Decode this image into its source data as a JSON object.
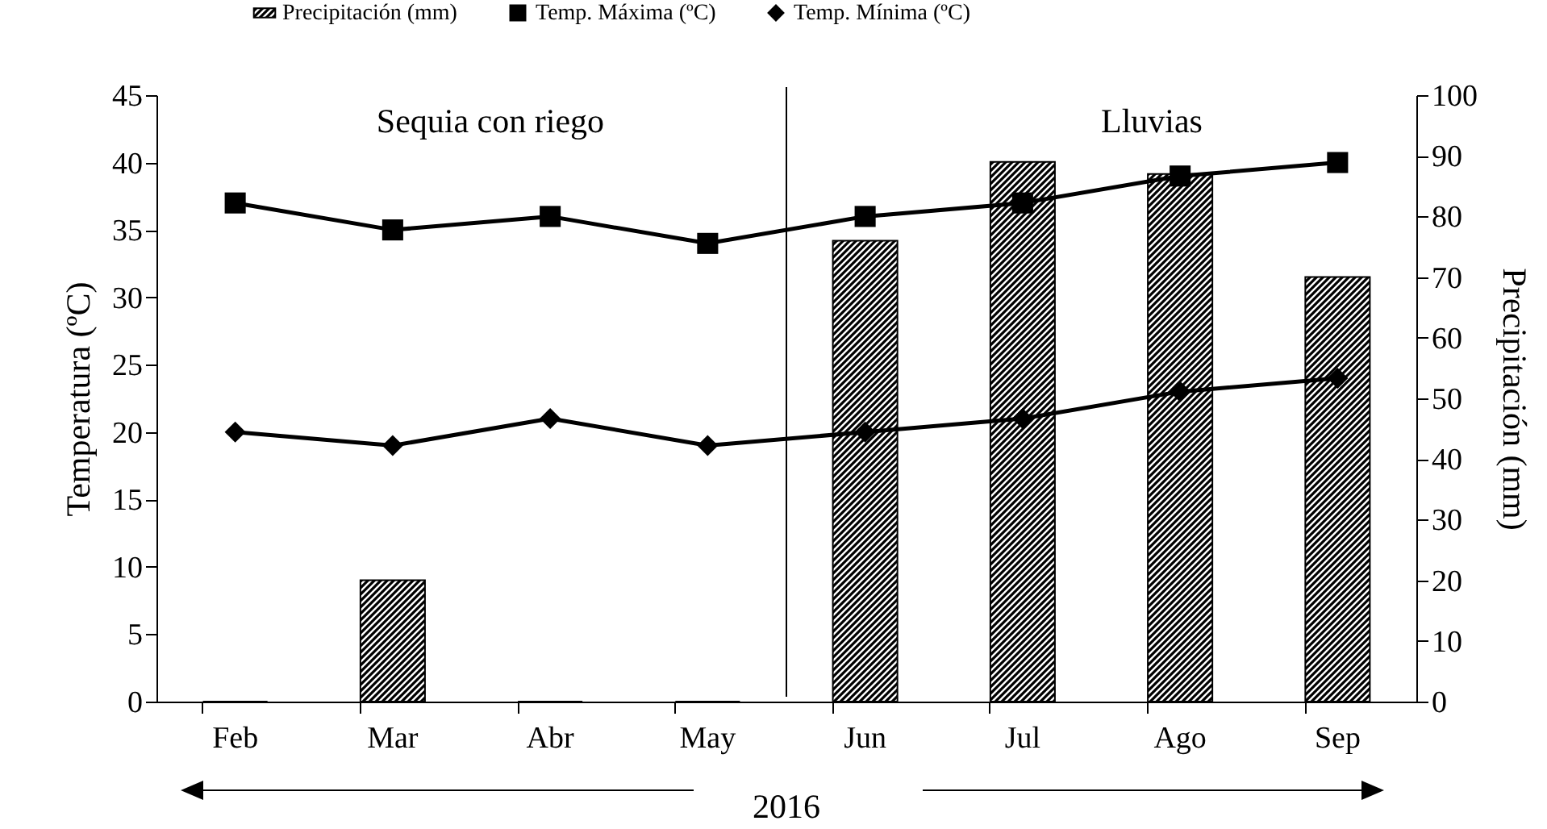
{
  "chart_data": {
    "type": "bar",
    "categories": [
      "Feb",
      "Mar",
      "Abr",
      "May",
      "Jun",
      "Jul",
      "Ago",
      "Sep"
    ],
    "series": [
      {
        "name": "Precipitación (mm)",
        "axis": "y2",
        "color": "#000000",
        "values": [
          0,
          20,
          0,
          0,
          76,
          89,
          87,
          70
        ]
      },
      {
        "name": "Temp. Máxima (ºC)",
        "type": "line",
        "marker": "square",
        "color": "#000000",
        "values": [
          37,
          35,
          36,
          34,
          36,
          37,
          39,
          40
        ]
      },
      {
        "name": "Temp. Mínima (ºC)",
        "type": "line",
        "marker": "diamond",
        "color": "#000000",
        "values": [
          20,
          19,
          21,
          19,
          20,
          21,
          23,
          24
        ]
      }
    ],
    "ylabel": "Temperatura (ºC)",
    "y2label": "Precipitación (mm)",
    "ylim": [
      0,
      45
    ],
    "yticks": [
      0,
      5,
      10,
      15,
      20,
      25,
      30,
      35,
      40,
      45
    ],
    "y2lim": [
      0,
      100
    ],
    "y2ticks": [
      0,
      10,
      20,
      30,
      40,
      50,
      60,
      70,
      80,
      90,
      100
    ],
    "legend": "top",
    "annotations": [
      "Sequia con riego",
      "Lluvias",
      "2016"
    ]
  }
}
